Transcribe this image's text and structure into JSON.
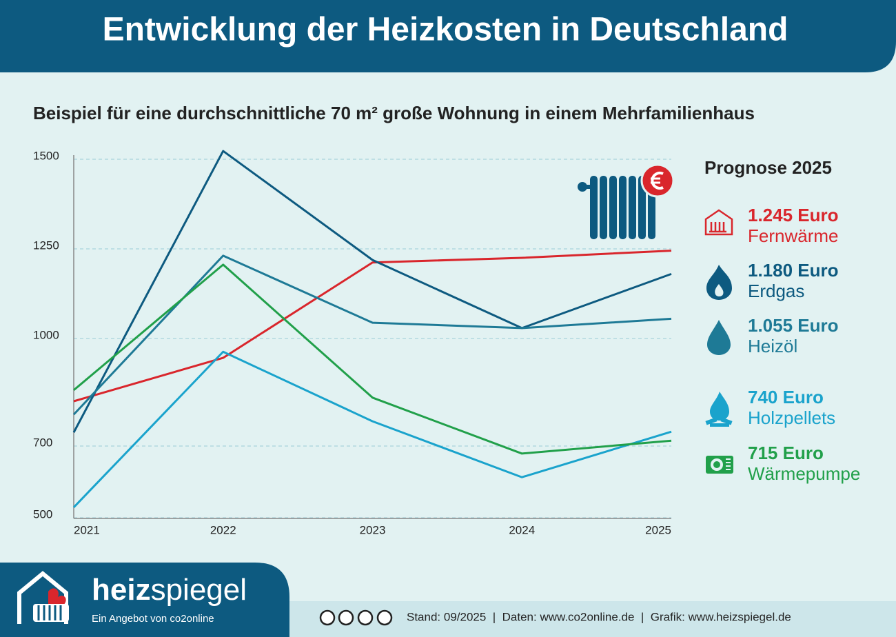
{
  "chart_data": {
    "type": "line",
    "title": "Entwicklung der Heizkosten in Deutschland",
    "subtitle": "Beispiel für eine durchschnittliche 70 m² große Wohnung in einem Mehrfamilienhaus",
    "categories": [
      "2021",
      "2022",
      "2023",
      "2024",
      "2025"
    ],
    "series": [
      {
        "name": "Fernwärme",
        "color": "#d9262c",
        "values": [
          825,
          946,
          1212,
          1225,
          1245
        ],
        "value_labels": [
          null,
          null,
          null,
          null,
          "1.245 Euro"
        ]
      },
      {
        "name": "Erdgas",
        "color": "#0d5a80",
        "values": [
          738,
          1523,
          1219,
          1029,
          1180
        ],
        "value_labels": [
          null,
          null,
          null,
          null,
          "1.180 Euro"
        ]
      },
      {
        "name": "Heizöl",
        "color": "#1e7a96",
        "values": [
          788,
          1231,
          1044,
          1029,
          1055
        ],
        "value_labels": [
          null,
          null,
          null,
          null,
          "1.055 Euro"
        ]
      },
      {
        "name": "Holzpellets",
        "color": "#1aa3cc",
        "values": [
          529,
          963,
          769,
          613,
          740
        ],
        "value_labels": [
          null,
          null,
          null,
          null,
          "740 Euro"
        ]
      },
      {
        "name": "Wärmepumpe",
        "color": "#21a04a",
        "values": [
          856,
          1206,
          835,
          679,
          715
        ],
        "value_labels": [
          null,
          null,
          null,
          null,
          "715 Euro"
        ]
      }
    ],
    "ylim": [
      500,
      1500
    ],
    "yticks": [
      500,
      700,
      1000,
      1250,
      1500
    ],
    "grid": true,
    "legend_title": "Prognose 2025"
  },
  "footer": {
    "brand_bold": "heiz",
    "brand_light": "spiegel",
    "tagline": "Ein Angebot von co2online",
    "credits": "Stand: 09/2025  |  Daten: www.co2online.de  |  Grafik: www.heizspiegel.de"
  }
}
